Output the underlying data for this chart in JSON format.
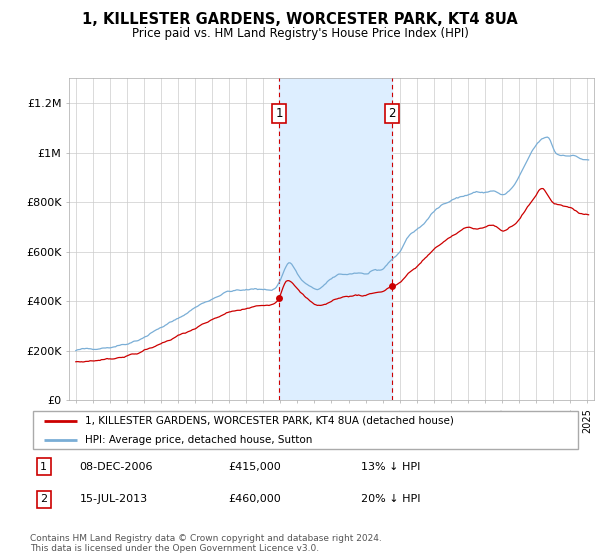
{
  "title": "1, KILLESTER GARDENS, WORCESTER PARK, KT4 8UA",
  "subtitle": "Price paid vs. HM Land Registry's House Price Index (HPI)",
  "ylabel_ticks": [
    "£0",
    "£200K",
    "£400K",
    "£600K",
    "£800K",
    "£1M",
    "£1.2M"
  ],
  "ylim": [
    0,
    1300000
  ],
  "yticks": [
    0,
    200000,
    400000,
    600000,
    800000,
    1000000,
    1200000
  ],
  "sale1_date": "08-DEC-2006",
  "sale1_price": 415000,
  "sale1_pct": "13%",
  "sale2_date": "15-JUL-2013",
  "sale2_price": 460000,
  "sale2_pct": "20%",
  "legend_line1": "1, KILLESTER GARDENS, WORCESTER PARK, KT4 8UA (detached house)",
  "legend_line2": "HPI: Average price, detached house, Sutton",
  "footer": "Contains HM Land Registry data © Crown copyright and database right 2024.\nThis data is licensed under the Open Government Licence v3.0.",
  "hpi_color": "#7aaed6",
  "price_color": "#cc0000",
  "shade_color": "#ddeeff",
  "annotation_box_color": "#cc0000",
  "dashed_line_color": "#cc0000",
  "sale1_x": 2006.92,
  "sale2_x": 2013.54
}
